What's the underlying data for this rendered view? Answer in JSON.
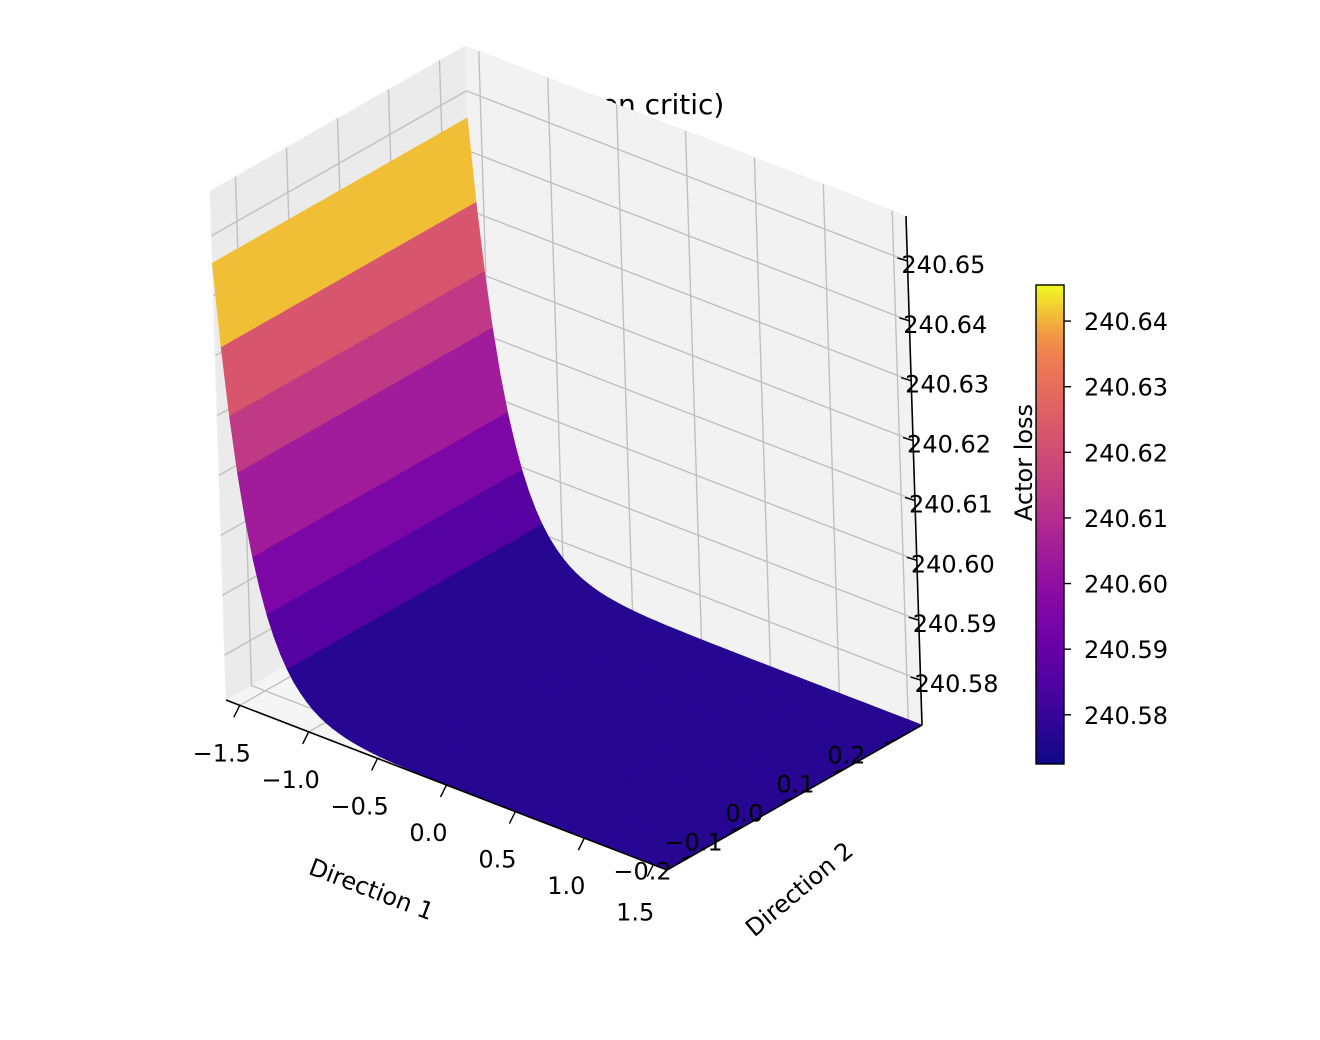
{
  "chart_data": {
    "type": "surface3d",
    "title": "Actor loss (frozen critic)",
    "xlabel": "Direction 1",
    "ylabel": "Direction 2",
    "zlabel": "Actor loss",
    "colormap": "plasma",
    "xlim": [
      -1.6,
      1.6
    ],
    "ylim": [
      -0.25,
      0.25
    ],
    "zlim": [
      240.5725,
      240.6575
    ],
    "xticks": [
      -1.5,
      -1.0,
      -0.5,
      0.0,
      0.5,
      1.0,
      1.5
    ],
    "xtick_labels": [
      "−1.5",
      "−1.0",
      "−0.5",
      "0.0",
      "0.5",
      "1.0",
      "1.5"
    ],
    "yticks": [
      -0.2,
      -0.1,
      0.0,
      0.1,
      0.2
    ],
    "ytick_labels": [
      "−0.2",
      "−0.1",
      "0.0",
      "0.1",
      "0.2"
    ],
    "zticks": [
      240.58,
      240.59,
      240.6,
      240.61,
      240.62,
      240.63,
      240.64,
      240.65
    ],
    "ztick_labels": [
      "240.58",
      "240.59",
      "240.60",
      "240.61",
      "240.62",
      "240.63",
      "240.64",
      "240.65"
    ],
    "colorbar": {
      "range": [
        240.5725,
        240.6455
      ],
      "ticks": [
        240.58,
        240.59,
        240.6,
        240.61,
        240.62,
        240.63,
        240.64
      ],
      "tick_labels": [
        "240.58",
        "240.59",
        "240.60",
        "240.61",
        "240.62",
        "240.63",
        "240.64"
      ]
    },
    "surface": {
      "x_range": [
        -1.6,
        1.6
      ],
      "y_range": [
        -0.25,
        0.25
      ],
      "z_min": 240.5725,
      "z_max": 240.6455,
      "shape": "exponential decay along Direction 1 from x = -1.6, nearly constant in Direction 2",
      "decay_scale": 0.22
    },
    "grid": true
  }
}
